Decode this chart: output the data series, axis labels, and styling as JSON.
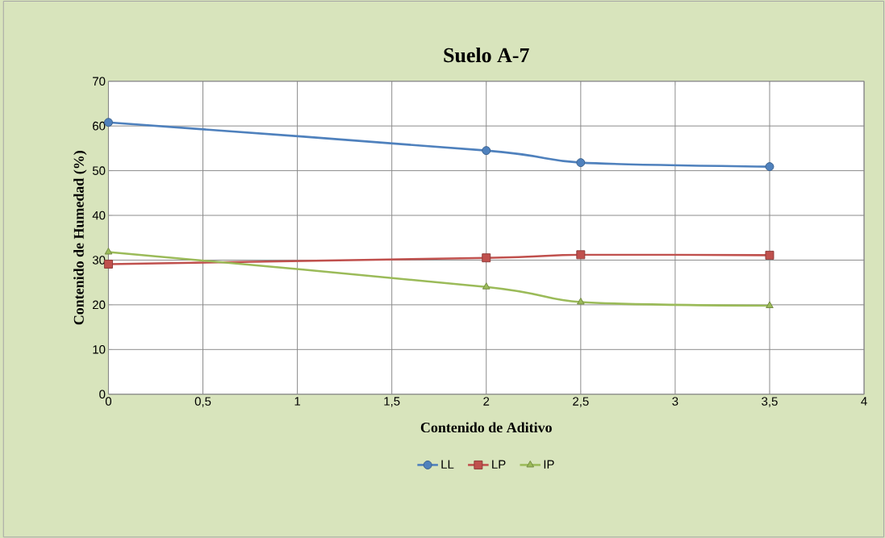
{
  "chart_data": {
    "type": "line",
    "title": "Suelo A-7",
    "xlabel": "Contenido de Aditivo",
    "ylabel": "Contenido de Humedad (%)",
    "x": [
      0,
      2,
      2.5,
      3.5
    ],
    "series": [
      {
        "name": "LL",
        "color": "#4f81bd",
        "marker": "circle",
        "values": [
          60.8,
          54.5,
          51.8,
          50.9
        ]
      },
      {
        "name": "LP",
        "color": "#c0504d",
        "marker": "square",
        "values": [
          29.1,
          30.5,
          31.2,
          31.1
        ]
      },
      {
        "name": "IP",
        "color": "#9bbb59",
        "marker": "triangle",
        "values": [
          31.8,
          24.0,
          20.6,
          19.8
        ]
      }
    ],
    "xlim": [
      0,
      4
    ],
    "ylim": [
      0,
      70
    ],
    "xticks": [
      0,
      {
        "value": 0.5,
        "label": "0,5"
      },
      1,
      {
        "value": 1.5,
        "label": "1,5"
      },
      2,
      {
        "value": 2.5,
        "label": "2,5"
      },
      3,
      {
        "value": 3.5,
        "label": "3,5"
      },
      4
    ],
    "yticks": [
      0,
      10,
      20,
      30,
      40,
      50,
      60,
      70
    ],
    "grid": true,
    "legend": "bottom"
  }
}
